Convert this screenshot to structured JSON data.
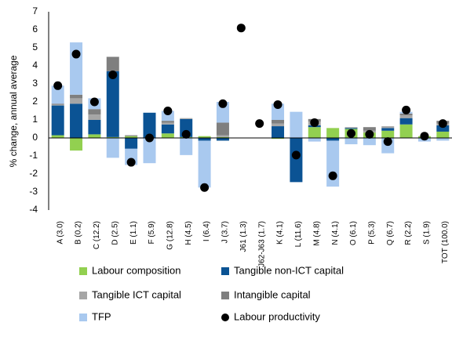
{
  "chart_data": {
    "type": "bar",
    "stacked": true,
    "y_label": "% change, annual average",
    "categories": [
      "A (3.0)",
      "B (0.2)",
      "C (12.2)",
      "D (2.5)",
      "E (1.1)",
      "F (5.9)",
      "G (12.8)",
      "H (4.5)",
      "I (6.4)",
      "J (3.7)",
      "J61 (1.3)",
      "J62-J63 (1.7)",
      "K (4.1)",
      "L (11.6)",
      "M (4.8)",
      "N (4.1)",
      "O (6.1)",
      "P (5.3)",
      "Q (6.7)",
      "R (2.2)",
      "S (1.9)",
      "TOT (100.0)"
    ],
    "ylim": [
      -4,
      7
    ],
    "yticks": [
      -4,
      -3,
      -2,
      -1,
      0,
      1,
      2,
      3,
      4,
      5,
      6,
      7
    ],
    "series": [
      {
        "name": "Labour composition",
        "color": "#92d050",
        "values": [
          0.15,
          -0.7,
          0.2,
          0.05,
          0.1,
          0,
          0.25,
          0.05,
          0.1,
          0.05,
          null,
          null,
          -0.05,
          0,
          0.6,
          0.55,
          0.5,
          0.3,
          0.4,
          0.75,
          0.1,
          0.35
        ]
      },
      {
        "name": "Tangible non-ICT capital",
        "color": "#0b5394",
        "values": [
          1.65,
          1.9,
          0.8,
          3.65,
          -0.6,
          1.4,
          0.5,
          1.0,
          -0.15,
          -0.15,
          null,
          null,
          0.65,
          -2.45,
          0.1,
          -0.15,
          0.05,
          0,
          0.15,
          0.35,
          0,
          0.35
        ]
      },
      {
        "name": "Tangible ICT capital",
        "color": "#a6a6a6",
        "values": [
          0.05,
          0.3,
          0.3,
          0,
          0,
          0,
          0.1,
          0.05,
          0,
          0.1,
          null,
          null,
          0.15,
          0,
          0.2,
          0,
          0.05,
          0.1,
          0.1,
          0.15,
          0,
          0.1
        ]
      },
      {
        "name": "Intangible capital",
        "color": "#7f7f7f",
        "values": [
          0.05,
          0.2,
          0.3,
          0.8,
          0.05,
          0,
          0.1,
          0,
          0,
          0.7,
          null,
          null,
          0.2,
          0,
          0.15,
          0,
          0,
          0.2,
          0,
          0.1,
          0,
          0.15
        ]
      },
      {
        "name": "TFP",
        "color": "#a9c9ef",
        "values": [
          1.0,
          2.9,
          0.6,
          -1.1,
          -0.9,
          -1.4,
          0.55,
          -0.95,
          -2.6,
          1.15,
          null,
          null,
          0.9,
          1.45,
          -0.2,
          -2.55,
          -0.35,
          -0.4,
          -0.85,
          0.1,
          -0.2,
          -0.15
        ]
      },
      {
        "name": "Labour productivity",
        "color": "#000000",
        "type": "scatter",
        "values": [
          2.9,
          4.65,
          2.0,
          3.5,
          -1.35,
          0.0,
          1.5,
          0.2,
          -2.75,
          1.9,
          6.1,
          0.8,
          1.85,
          -0.95,
          0.85,
          -2.1,
          0.25,
          0.2,
          -0.2,
          1.55,
          0.1,
          0.8
        ]
      }
    ]
  }
}
